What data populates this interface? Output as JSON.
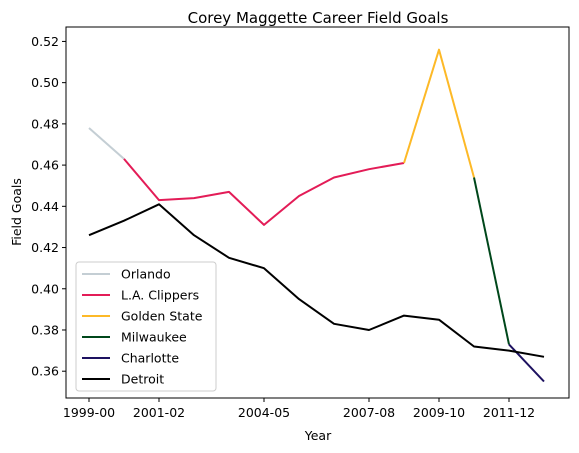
{
  "chart_data": {
    "type": "line",
    "title": "Corey Maggette Career Field Goals",
    "xlabel": "Year",
    "ylabel": "Field Goals",
    "seasons": [
      "1999-00",
      "2000-01",
      "2001-02",
      "2002-03",
      "2003-04",
      "2004-05",
      "2005-06",
      "2006-07",
      "2007-08",
      "2008-09",
      "2009-10",
      "2010-11",
      "2011-12",
      "2012-13"
    ],
    "x_tick_labels": [
      "1999-00",
      "2001-02",
      "2004-05",
      "2007-08",
      "2009-10",
      "2011-12"
    ],
    "x_tick_seasons": [
      "1999-00",
      "2001-02",
      "2004-05",
      "2007-08",
      "2009-10",
      "2011-12"
    ],
    "ylim": [
      0.347,
      0.527
    ],
    "y_ticks": [
      "0.36",
      "0.38",
      "0.40",
      "0.42",
      "0.44",
      "0.46",
      "0.48",
      "0.50",
      "0.52"
    ],
    "grid": false,
    "legend_position": "lower-left",
    "series": [
      {
        "name": "Orlando",
        "color": "#c4ced4",
        "x": [
          "1999-00",
          "2000-01"
        ],
        "y": [
          0.478,
          0.463
        ]
      },
      {
        "name": "L.A. Clippers",
        "color": "#e31c57",
        "x": [
          "2000-01",
          "2001-02",
          "2002-03",
          "2003-04",
          "2004-05",
          "2005-06",
          "2006-07",
          "2007-08",
          "2008-09"
        ],
        "y": [
          0.463,
          0.443,
          0.444,
          0.447,
          0.431,
          0.445,
          0.454,
          0.458,
          0.461
        ]
      },
      {
        "name": "Golden State",
        "color": "#fdb927",
        "x": [
          "2008-09",
          "2009-10",
          "2010-11"
        ],
        "y": [
          0.461,
          0.516,
          0.454
        ]
      },
      {
        "name": "Milwaukee",
        "color": "#00471b",
        "x": [
          "2010-11",
          "2011-12"
        ],
        "y": [
          0.454,
          0.373
        ]
      },
      {
        "name": "Charlotte",
        "color": "#1d1160",
        "x": [
          "2011-12",
          "2012-13"
        ],
        "y": [
          0.373,
          0.355
        ]
      },
      {
        "name": "Detroit",
        "color": "#000000",
        "x": [
          "1999-00",
          "2000-01",
          "2001-02",
          "2002-03",
          "2003-04",
          "2004-05",
          "2005-06",
          "2006-07",
          "2007-08",
          "2008-09",
          "2009-10",
          "2010-11",
          "2011-12",
          "2012-13"
        ],
        "y": [
          0.426,
          0.433,
          0.441,
          0.426,
          0.415,
          0.41,
          0.395,
          0.383,
          0.38,
          0.387,
          0.385,
          0.372,
          0.37,
          0.367
        ]
      }
    ]
  }
}
